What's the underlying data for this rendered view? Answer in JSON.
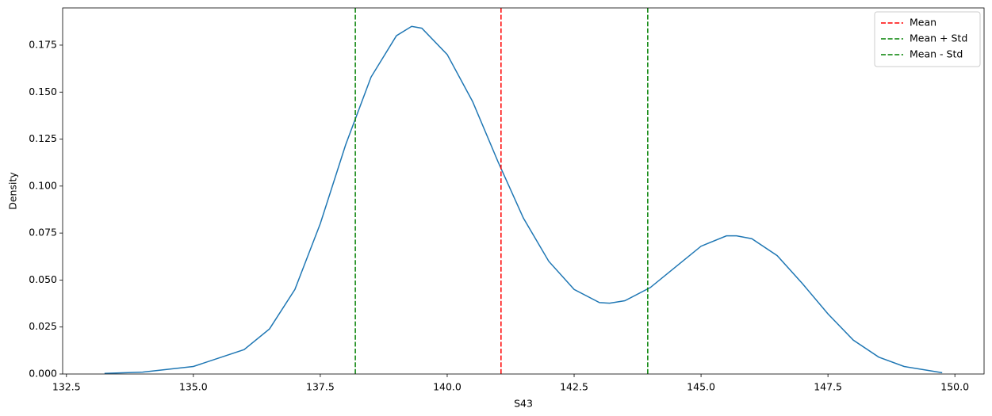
{
  "chart_data": {
    "type": "line",
    "x_label": "S43",
    "y_label": "Density",
    "x": [
      133.25,
      134,
      135,
      136,
      136.5,
      137,
      137.5,
      138,
      138.5,
      139,
      139.3,
      139.5,
      140,
      140.5,
      141,
      141.5,
      142,
      142.5,
      143,
      143.2,
      143.5,
      144,
      144.5,
      145,
      145.5,
      145.7,
      146,
      146.5,
      147,
      147.5,
      148,
      148.5,
      149,
      149.75
    ],
    "series": [
      {
        "color": "#1f77b4",
        "values": [
          0.0003,
          0.001,
          0.004,
          0.013,
          0.024,
          0.045,
          0.08,
          0.122,
          0.158,
          0.18,
          0.185,
          0.184,
          0.17,
          0.145,
          0.113,
          0.083,
          0.06,
          0.045,
          0.038,
          0.0377,
          0.039,
          0.046,
          0.057,
          0.068,
          0.0735,
          0.0735,
          0.072,
          0.063,
          0.048,
          0.032,
          0.018,
          0.009,
          0.004,
          0.0007
        ]
      }
    ],
    "vlines": [
      {
        "name": "Mean",
        "x": 141.06,
        "color": "#ff0000"
      },
      {
        "name": "Mean + Std",
        "x": 143.95,
        "color": "#008000"
      },
      {
        "name": "Mean - Std",
        "x": 138.19,
        "color": "#008000"
      }
    ],
    "line_style": "dashed",
    "legend": "upper right",
    "xlim": [
      132.425,
      150.575
    ],
    "ylim": [
      0,
      0.1948
    ],
    "xticks": [
      132.5,
      {
        "value": 135,
        "label": "135.0"
      },
      137.5,
      {
        "value": 140,
        "label": "140.0"
      },
      142.5,
      {
        "value": 145,
        "label": "145.0"
      },
      147.5,
      {
        "value": 150,
        "label": "150.0"
      }
    ],
    "yticks": [
      {
        "value": 0,
        "label": "0.000"
      },
      0.025,
      {
        "value": 0.05,
        "label": "0.050"
      },
      0.075,
      {
        "value": 0.1,
        "label": "0.100"
      },
      0.125,
      {
        "value": 0.15,
        "label": "0.150"
      },
      0.175
    ]
  }
}
